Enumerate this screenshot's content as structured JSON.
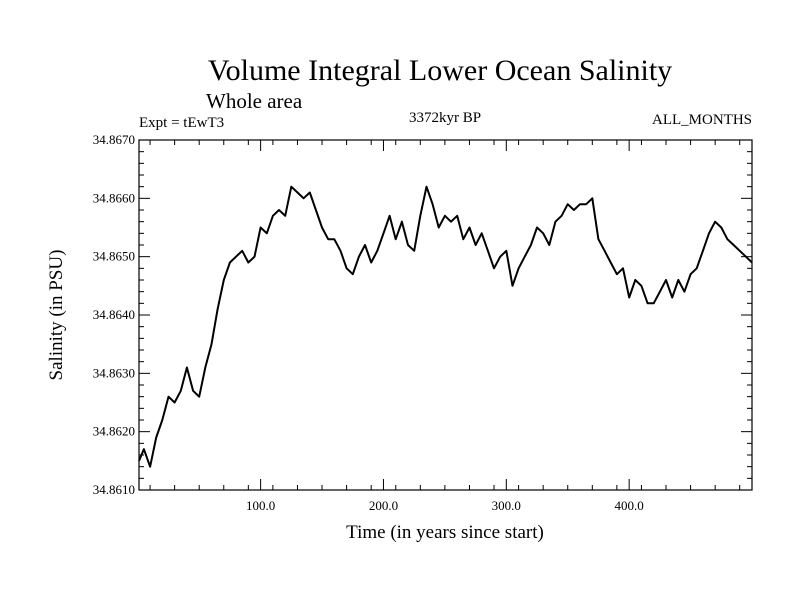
{
  "chart_data": {
    "type": "line",
    "title": "Volume Integral Lower Ocean Salinity",
    "subtitle": "Whole area",
    "experiment_label": "Expt = tEwT3",
    "period_label": "3372kyr BP",
    "months_label": "ALL_MONTHS",
    "xlabel": "Time (in years since start)",
    "ylabel": "Salinity (in PSU)",
    "xlim": [
      1,
      500
    ],
    "ylim": [
      34.861,
      34.867
    ],
    "x_ticks": [
      100,
      200,
      300,
      400
    ],
    "x_tick_labels": [
      "100.0",
      "200.0",
      "300.0",
      "400.0"
    ],
    "y_ticks": [
      34.861,
      34.862,
      34.863,
      34.864,
      34.865,
      34.866,
      34.867
    ],
    "y_tick_labels": [
      "34.8610",
      "34.8620",
      "34.8630",
      "34.8640",
      "34.8650",
      "34.8660",
      "34.8670"
    ],
    "series": [
      {
        "name": "Salinity",
        "color": "#000000",
        "x": [
          1,
          5,
          10,
          15,
          20,
          25,
          30,
          35,
          40,
          45,
          50,
          55,
          60,
          65,
          70,
          75,
          80,
          85,
          90,
          95,
          100,
          105,
          110,
          115,
          120,
          125,
          130,
          135,
          140,
          145,
          150,
          155,
          160,
          165,
          170,
          175,
          180,
          185,
          190,
          195,
          200,
          205,
          210,
          215,
          220,
          225,
          230,
          235,
          240,
          245,
          250,
          255,
          260,
          265,
          270,
          275,
          280,
          285,
          290,
          295,
          300,
          305,
          310,
          315,
          320,
          325,
          330,
          335,
          340,
          345,
          350,
          355,
          360,
          365,
          370,
          375,
          380,
          385,
          390,
          395,
          400,
          405,
          410,
          415,
          420,
          425,
          430,
          435,
          440,
          445,
          450,
          455,
          460,
          465,
          470,
          475,
          480,
          485,
          490,
          495,
          500
        ],
        "values": [
          34.8615,
          34.8617,
          34.8614,
          34.8619,
          34.8622,
          34.8626,
          34.8625,
          34.8627,
          34.8631,
          34.8627,
          34.8626,
          34.8631,
          34.8635,
          34.8641,
          34.8646,
          34.8649,
          34.865,
          34.8651,
          34.8649,
          34.865,
          34.8655,
          34.8654,
          34.8657,
          34.8658,
          34.8657,
          34.8662,
          34.8661,
          34.866,
          34.8661,
          34.8658,
          34.8655,
          34.8653,
          34.8653,
          34.8651,
          34.8648,
          34.8647,
          34.865,
          34.8652,
          34.8649,
          34.8651,
          34.8654,
          34.8657,
          34.8653,
          34.8656,
          34.8652,
          34.8651,
          34.8657,
          34.8662,
          34.8659,
          34.8655,
          34.8657,
          34.8656,
          34.8657,
          34.8653,
          34.8655,
          34.8652,
          34.8654,
          34.8651,
          34.8648,
          34.865,
          34.8651,
          34.8645,
          34.8648,
          34.865,
          34.8652,
          34.8655,
          34.8654,
          34.8652,
          34.8656,
          34.8657,
          34.8659,
          34.8658,
          34.8659,
          34.8659,
          34.866,
          34.8653,
          34.8651,
          34.8649,
          34.8647,
          34.8648,
          34.8643,
          34.8646,
          34.8645,
          34.8642,
          34.8642,
          34.8644,
          34.8646,
          34.8643,
          34.8646,
          34.8644,
          34.8647,
          34.8648,
          34.8651,
          34.8654,
          34.8656,
          34.8655,
          34.8653,
          34.8652,
          34.8651,
          34.865,
          34.8649
        ]
      }
    ]
  }
}
